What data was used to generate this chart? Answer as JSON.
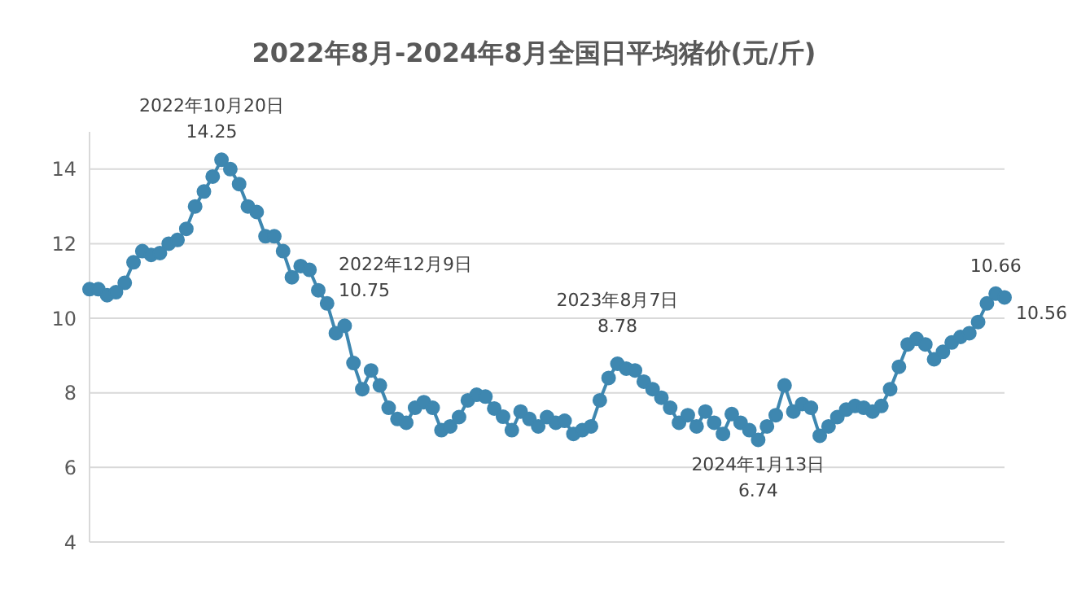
{
  "chart_data": {
    "type": "line",
    "title": "2022年8月-2024年8月全国日平均猪价(元/斤)",
    "categories": [
      null,
      null,
      null,
      null,
      null,
      null,
      null,
      null,
      null,
      null,
      null,
      null,
      null,
      null,
      null,
      null,
      null,
      null,
      null,
      null,
      null,
      null,
      null,
      null,
      null,
      null,
      null,
      null,
      null,
      null,
      null,
      null,
      null,
      null,
      null,
      null,
      null,
      null,
      null,
      null,
      null,
      null,
      null,
      null,
      null,
      null,
      null,
      null,
      null,
      null,
      null,
      null,
      null,
      null,
      null,
      null,
      null,
      null,
      null,
      null,
      null,
      null,
      null,
      null,
      null,
      null,
      null,
      null,
      null,
      null,
      null,
      null,
      null,
      null,
      null,
      null,
      null,
      null,
      null,
      null,
      null,
      null,
      null,
      null,
      null,
      null,
      null,
      null,
      null,
      null,
      null,
      null,
      null,
      null,
      null,
      null,
      null,
      null,
      null,
      null,
      null,
      null,
      null,
      null,
      null
    ],
    "series": [
      {
        "color": "#3e87b0",
        "values": [
          10.78,
          10.78,
          10.62,
          10.7,
          10.95,
          11.5,
          11.8,
          11.7,
          11.75,
          12.0,
          12.1,
          12.4,
          13.0,
          13.4,
          13.8,
          14.25,
          14.0,
          13.6,
          13.0,
          12.85,
          12.2,
          12.2,
          11.8,
          11.1,
          11.4,
          11.3,
          10.75,
          10.4,
          9.6,
          9.8,
          8.8,
          8.1,
          8.6,
          8.2,
          7.6,
          7.3,
          7.2,
          7.6,
          7.75,
          7.6,
          7.0,
          7.1,
          7.35,
          7.8,
          7.95,
          7.9,
          7.58,
          7.36,
          7.0,
          7.5,
          7.3,
          7.1,
          7.35,
          7.2,
          7.25,
          6.9,
          7.0,
          7.1,
          7.8,
          8.4,
          8.78,
          8.65,
          8.6,
          8.3,
          8.1,
          7.87,
          7.6,
          7.2,
          7.4,
          7.1,
          7.5,
          7.2,
          6.9,
          7.43,
          7.2,
          7.0,
          6.74,
          7.1,
          7.4,
          8.2,
          7.5,
          7.7,
          7.6,
          6.85,
          7.1,
          7.35,
          7.55,
          7.65,
          7.6,
          7.5,
          7.65,
          8.1,
          8.7,
          9.3,
          9.45,
          9.3,
          8.9,
          9.1,
          9.35,
          9.5,
          9.6,
          9.9,
          10.4,
          10.66,
          10.56
        ]
      }
    ],
    "ylim": [
      4,
      15
    ],
    "yticks": [
      4,
      6,
      8,
      10,
      12,
      14
    ],
    "grid": "y",
    "marker": "circle",
    "tick_labels": "y",
    "annotations": [
      {
        "text": "2022年10月20日\n14.25",
        "y": 14.25
      },
      "2022年12月9日\n10.75",
      {
        "text": "2023年8月7日\n8.78",
        "y": 8.78
      },
      {
        "text": "2024年1月13日\n6.74",
        "y": 6.74
      },
      {
        "text": "10.66",
        "y": 10.66
      },
      "10.56"
    ]
  }
}
